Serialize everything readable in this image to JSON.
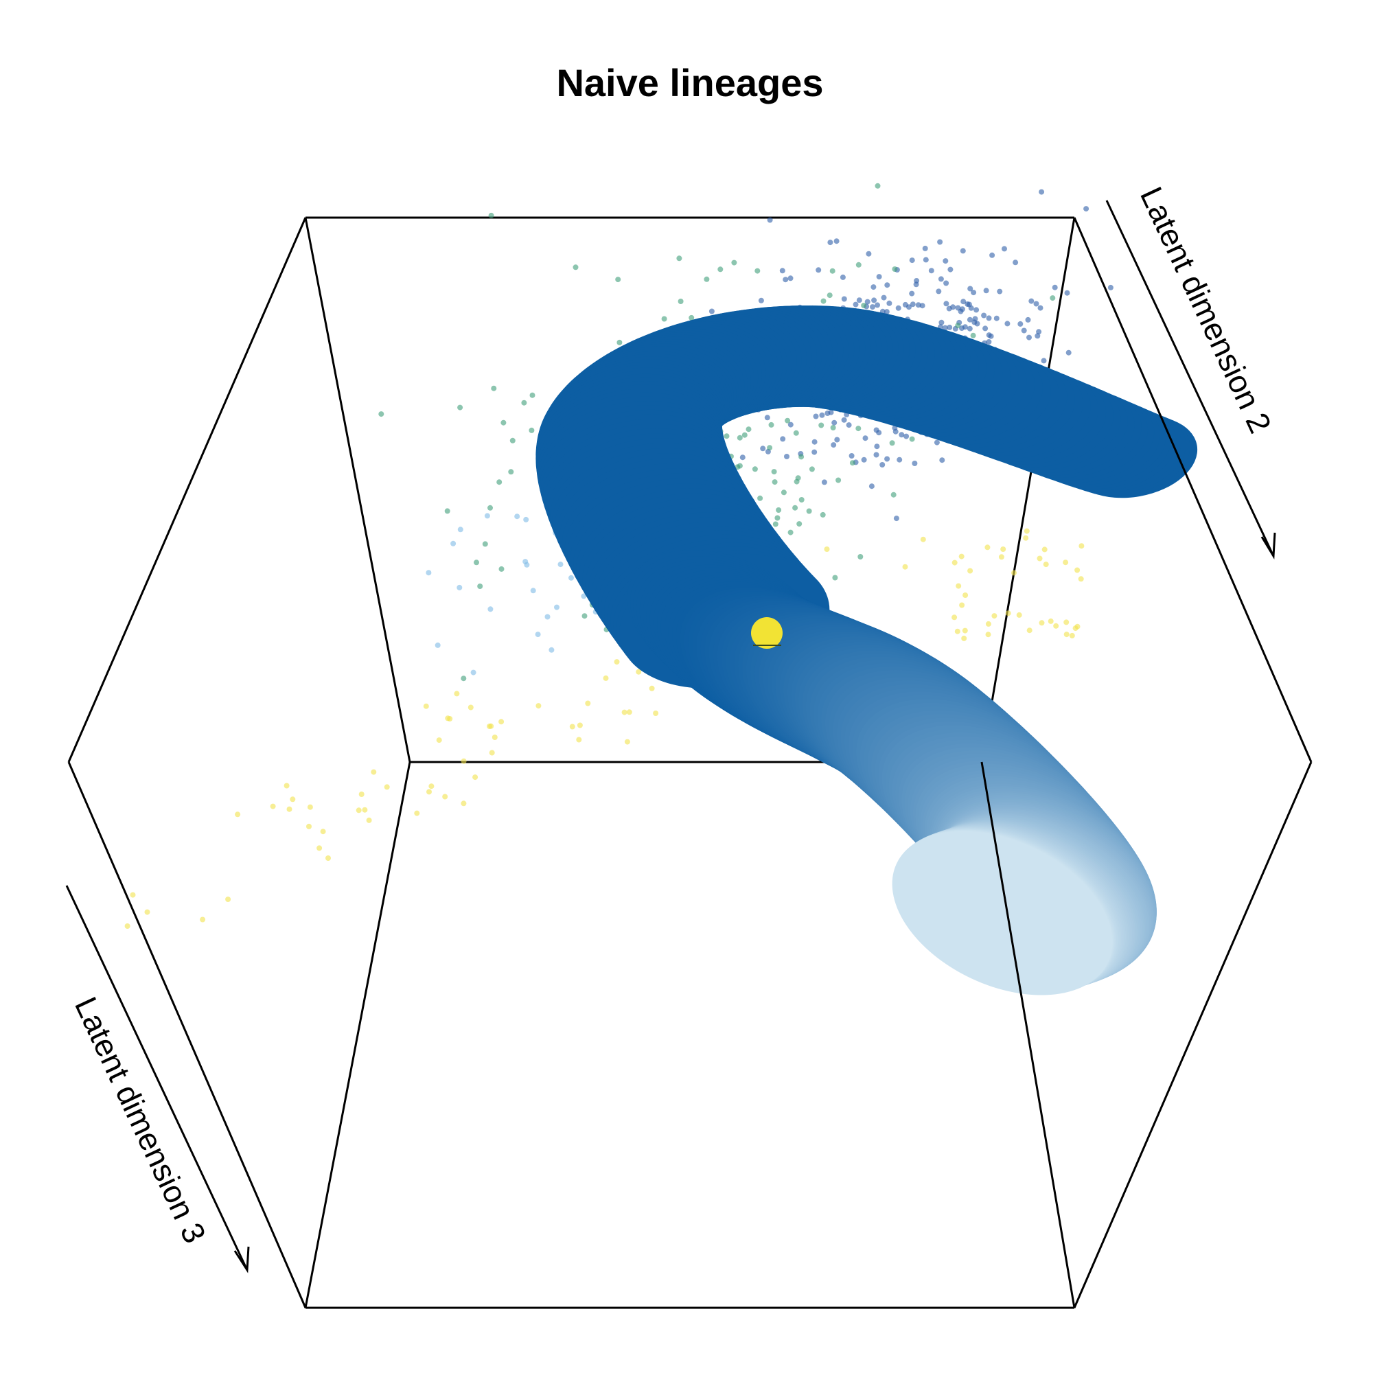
{
  "chart_data": {
    "type": "scatter",
    "title": "Naive lineages",
    "axis_labels": {
      "dim2": "Latent dimension 2",
      "dim3": "Latent dimension 3"
    },
    "projection": "3d perspective box",
    "grid": false,
    "legend": "none",
    "point_groups": [
      {
        "name": "",
        "color": "#2f5fa8",
        "region": "upper-right cloud",
        "count": 420
      },
      {
        "name": "",
        "color": "#3f9f7a",
        "region": "upper-middle cloud",
        "count": 240
      },
      {
        "name": "",
        "color": "#7fbbe6",
        "region": "middle cloud",
        "count": 60
      },
      {
        "name": "",
        "color": "#f2e34c",
        "region": "lower-left diagonal trail and right side",
        "count": 110
      }
    ],
    "trajectory": {
      "shape": "curved tube",
      "color_start": "#0d5ea3",
      "color_end": "#cde3f0",
      "direction": "from upper-right sweeping left, then down to lower-right"
    },
    "marker": {
      "color": "#f2e334",
      "shape": "large circle"
    }
  }
}
